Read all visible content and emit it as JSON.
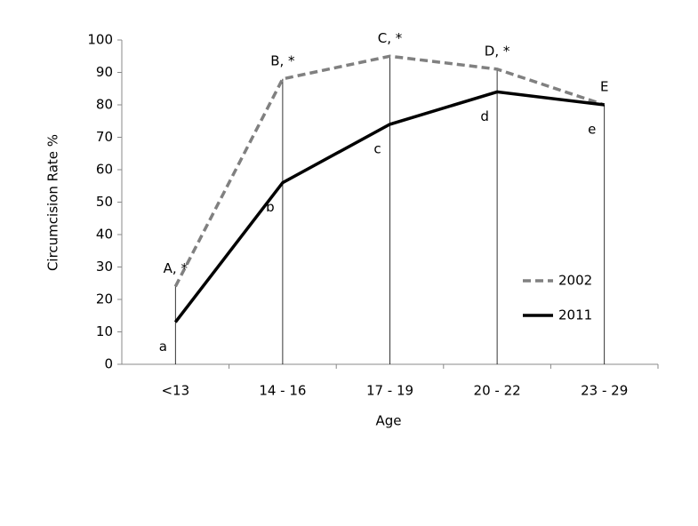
{
  "chart_data": {
    "type": "line",
    "x_label": "Age",
    "y_label": "Circumcision Rate  %",
    "categories": [
      "<13",
      "14 - 16",
      "17 - 19",
      "20 - 22",
      "23 - 29"
    ],
    "series": [
      {
        "name": "2002",
        "color": "#808080",
        "dash": true,
        "values": [
          24,
          88,
          95,
          91,
          80
        ],
        "point_labels": [
          "A, *",
          "B, *",
          "C, *",
          "D, *",
          "E"
        ]
      },
      {
        "name": "2011",
        "color": "#000000",
        "dash": false,
        "values": [
          13,
          56,
          74,
          84,
          80
        ],
        "point_labels": [
          "a",
          "b",
          "c",
          "d",
          "e"
        ]
      }
    ],
    "ylim": [
      0,
      100
    ],
    "yticks": [
      0,
      10,
      20,
      30,
      40,
      50,
      60,
      70,
      80,
      90,
      100
    ],
    "legend": "right"
  }
}
